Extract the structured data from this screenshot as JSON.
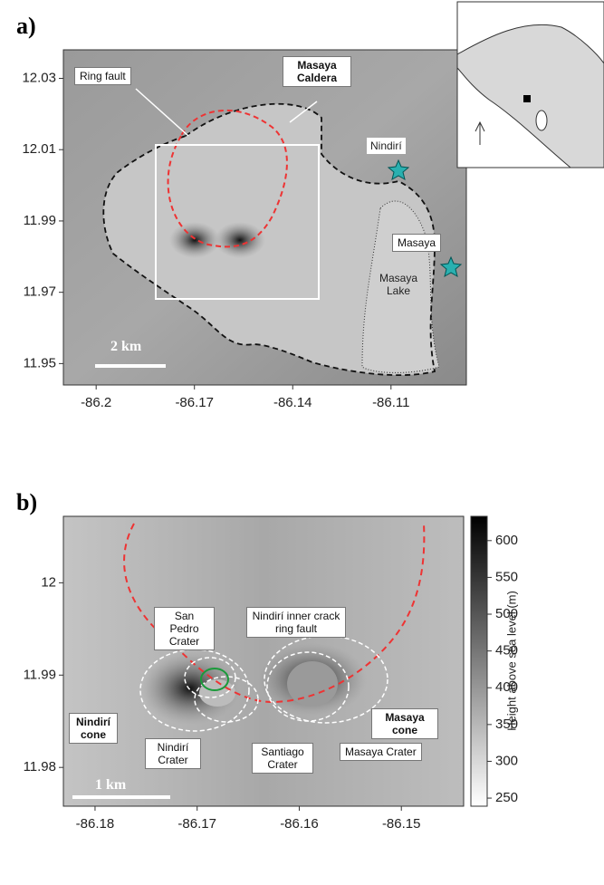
{
  "panels": [
    {
      "label": "a)",
      "xlim": [
        -86.21,
        -86.087
      ],
      "ylim": [
        11.944,
        12.038
      ],
      "xticks": [
        -86.2,
        -86.17,
        -86.14,
        -86.11
      ],
      "yticks": [
        12.03,
        12.01,
        11.99,
        11.97,
        11.95
      ],
      "annotations": {
        "ring_fault": "Ring fault",
        "caldera": "Masaya Caldera",
        "nindiri": "Nindirí",
        "masaya": "Masaya",
        "lake": "Masaya Lake",
        "scale": "2 km"
      }
    },
    {
      "label": "b)",
      "xlim": [
        -86.1831,
        -86.1439
      ],
      "ylim": [
        11.9758,
        12.0072
      ],
      "xticks": [
        -86.18,
        -86.17,
        -86.16,
        -86.15
      ],
      "yticks": [
        12,
        11.99,
        11.98
      ],
      "colorbar": {
        "label": "Height above sea level (m)",
        "lim": [
          239,
          633
        ],
        "ticks": [
          600,
          550,
          500,
          450,
          400,
          350,
          300,
          250
        ]
      },
      "annotations": {
        "inner_crack": "Nindirí inner crack ring fault",
        "san_pedro": "San Pedro Crater",
        "nindiri_cone": "Nindirí cone",
        "nindiri_crater": "Nindirí Crater",
        "santiago": "Santiago Crater",
        "masaya_cone": "Masaya cone",
        "masaya_crater": "Masaya Crater",
        "scale": "1 km"
      }
    }
  ]
}
